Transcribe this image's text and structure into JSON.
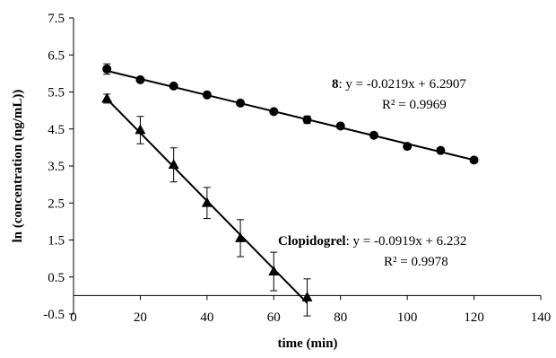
{
  "chart_data": {
    "type": "scatter",
    "title": "",
    "xlabel": "time (min)",
    "ylabel": "ln (concentration (ng/mL))",
    "xlim": [
      0,
      140
    ],
    "ylim": [
      -0.5,
      7.5
    ],
    "x_ticks": [
      "0",
      "20",
      "40",
      "60",
      "80",
      "100",
      "120",
      "140"
    ],
    "y_ticks": [
      "-0.5",
      "0.5",
      "1.5",
      "2.5",
      "3.5",
      "4.5",
      "5.5",
      "6.5",
      "7.5"
    ],
    "grid": false,
    "legend": "none",
    "series": [
      {
        "name": "8",
        "marker": "circle",
        "x": [
          10,
          20,
          30,
          40,
          50,
          60,
          70,
          80,
          90,
          100,
          110,
          120
        ],
        "y": [
          6.12,
          5.83,
          5.66,
          5.42,
          5.2,
          4.97,
          4.75,
          4.58,
          4.33,
          4.03,
          3.92,
          3.66
        ],
        "error": [
          0.14,
          0.05,
          0.05,
          0.05,
          0.07,
          0.03,
          0.1,
          0.05,
          0.05,
          0.07,
          0.05,
          0.03
        ],
        "fit": {
          "slope": -0.0219,
          "intercept": 6.2907,
          "x_range": [
            10,
            120
          ]
        },
        "label_name": "8",
        "label_equation": ": y = -0.0219x + 6.2907",
        "label_r2": "R² = 0.9969"
      },
      {
        "name": "Clopidogrel",
        "marker": "triangle",
        "x": [
          10,
          20,
          30,
          40,
          50,
          60,
          70
        ],
        "y": [
          5.32,
          4.47,
          3.53,
          2.5,
          1.55,
          0.65,
          -0.05
        ],
        "error": [
          0.12,
          0.37,
          0.46,
          0.42,
          0.5,
          0.52,
          0.5
        ],
        "fit": {
          "slope": -0.0919,
          "intercept": 6.232,
          "x_range": [
            10,
            70
          ]
        },
        "label_name": "Clopidogrel",
        "label_equation": ": y = -0.0919x + 6.232",
        "label_r2": "R² = 0.9978"
      }
    ]
  }
}
